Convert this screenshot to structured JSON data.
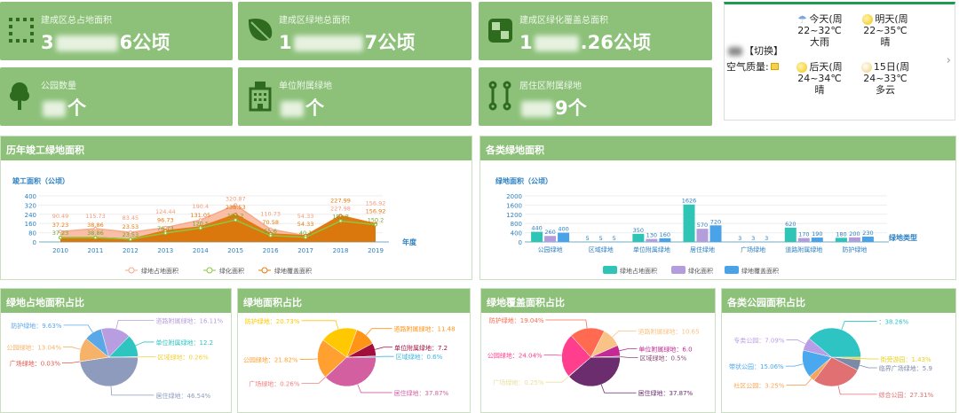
{
  "stats": [
    {
      "label": "建成区总占地面积",
      "prefix": "3",
      "suffix": "6公顷",
      "icon": "dotted-square-icon"
    },
    {
      "label": "建成区绿地总面积",
      "prefix": "1",
      "suffix": "7公顷",
      "icon": "leaf-icon"
    },
    {
      "label": "建成区绿化覆盖总面积",
      "prefix": "1",
      "suffix": ".26公顷",
      "icon": "quadrant-square-icon"
    },
    {
      "label": "公园数量",
      "prefix": "",
      "suffix": "个",
      "icon": "tree-icon"
    },
    {
      "label": "单位附属绿地",
      "prefix": "",
      "suffix": "个",
      "icon": "building-icon"
    },
    {
      "label": "居住区附属绿地",
      "prefix": "",
      "suffix": "9个",
      "icon": "link-nodes-icon"
    }
  ],
  "weather": {
    "switch": "【切换】",
    "air_quality": "空气质量:",
    "days": [
      {
        "day": "今天(周",
        "temp": "22~32℃",
        "desc": "大雨",
        "icon": "rain-icon"
      },
      {
        "day": "明天(周",
        "temp": "22~35℃",
        "desc": "晴",
        "icon": "sun-icon"
      },
      {
        "day": "后天(周",
        "temp": "24~34℃",
        "desc": "晴",
        "icon": "sun-icon"
      },
      {
        "day": "15日(周",
        "temp": "24~33℃",
        "desc": "多云",
        "icon": "cloudy-icon"
      }
    ],
    "next": "›"
  },
  "colors": {
    "card": "#8dc17a",
    "accent": "#1e9b4e"
  },
  "chart_data": [
    {
      "title": "历年竣工绿地面积",
      "type": "area",
      "ylabel": "竣工面积（公顷）",
      "xlabel": "年度",
      "ylim": [
        0,
        400
      ],
      "yticks": [
        "0",
        "80",
        "160",
        "240",
        "320",
        "400"
      ],
      "categories": [
        "2010",
        "2011",
        "2012",
        "2013",
        "2014",
        "2015",
        "2016",
        "2017",
        "2018",
        "2019"
      ],
      "legend_position": "bottom",
      "series": [
        {
          "name": "绿地占地面积",
          "color": "#f7a98a",
          "values": [
            90.49,
            115.73,
            83.45,
            124.44,
            190.4,
            320.87,
            110.73,
            54.33,
            227.98,
            156.92
          ]
        },
        {
          "name": "绿化面积",
          "color": "#8cc63f",
          "values": [
            37.23,
            38.86,
            23.53,
            76.73,
            120.5,
            190.2,
            55.6,
            40.1,
            181.8,
            150.2
          ]
        },
        {
          "name": "绿地覆盖面积",
          "color": "#e8780c",
          "values": [
            37.23,
            38.86,
            23.53,
            96.73,
            131.05,
            238.53,
            70.58,
            54.33,
            227.99,
            156.92
          ]
        }
      ]
    },
    {
      "title": "各类绿地面积",
      "type": "bar",
      "ylabel": "绿地面积（公顷）",
      "xlabel": "绿地类型",
      "ylim": [
        0,
        2000
      ],
      "yticks": [
        "0",
        "400",
        "800",
        "1200",
        "1600",
        "2000"
      ],
      "categories": [
        "公园绿地",
        "区域绿地",
        "单位附属绿地",
        "居住绿地",
        "广场绿地",
        "道路附属绿地",
        "防护绿地"
      ],
      "legend_position": "bottom",
      "series": [
        {
          "name": "绿地占地面积",
          "color": "#2ec4b6",
          "values": [
            440,
            5,
            350,
            1626,
            3,
            620,
            180
          ]
        },
        {
          "name": "绿化面积",
          "color": "#b39ddb",
          "values": [
            260,
            5,
            130,
            570,
            3,
            170,
            200
          ]
        },
        {
          "name": "绿地覆盖面积",
          "color": "#4aa3e8",
          "values": [
            400,
            5,
            160,
            720,
            3,
            190,
            230
          ]
        }
      ]
    },
    {
      "title": "绿地占地面积占比",
      "type": "pie",
      "slices": [
        {
          "name": "居住绿地",
          "value": 46.54,
          "label": "居住绿地：46.54%",
          "color": "#8e9bbd"
        },
        {
          "name": "广场绿地",
          "value": 0.03,
          "label": "广场绿地：0.03%",
          "color": "#e8554e"
        },
        {
          "name": "公园绿地",
          "value": 13.04,
          "label": "公园绿地：13.04%",
          "color": "#f7b26a"
        },
        {
          "name": "防护绿地",
          "value": 9.63,
          "label": "防护绿地：9.63%",
          "color": "#5aa8e8"
        },
        {
          "name": "道路附属绿地",
          "value": 16.11,
          "label": "道路附属绿地：16.11%",
          "color": "#b89ee0"
        },
        {
          "name": "单位附属绿地",
          "value": 12.2,
          "label": "单位附属绿地：12.2",
          "color": "#2ec4c0"
        },
        {
          "name": "区域绿地",
          "value": 0.26,
          "label": "区域绿地：0.26%",
          "color": "#f2d13c"
        }
      ]
    },
    {
      "title": "绿地面积占比",
      "type": "pie",
      "slices": [
        {
          "name": "居住绿地",
          "value": 37.87,
          "label": "居住绿地：37.87%",
          "color": "#d35fa0"
        },
        {
          "name": "广场绿地",
          "value": 0.26,
          "label": "广场绿地：0.26%",
          "color": "#f08080"
        },
        {
          "name": "公园绿地",
          "value": 21.82,
          "label": "公园绿地：21.82%",
          "color": "#ffa030"
        },
        {
          "name": "防护绿地",
          "value": 20.73,
          "label": "防护绿地：20.73%",
          "color": "#ffc800"
        },
        {
          "name": "道路附属绿地",
          "value": 11.48,
          "label": "道路附属绿地：11.48",
          "color": "#ff9416"
        },
        {
          "name": "单位附属绿地",
          "value": 7.2,
          "label": "单位附属绿地：7.2",
          "color": "#a30f3c"
        },
        {
          "name": "区域绿地",
          "value": 0.6,
          "label": "区域绿地：0.6%",
          "color": "#3fb6e0"
        }
      ]
    },
    {
      "title": "绿地覆盖面积占比",
      "type": "pie",
      "slices": [
        {
          "name": "居住绿地",
          "value": 37.87,
          "label": "居住绿地：37.87%",
          "color": "#6b2d6e"
        },
        {
          "name": "广场绿地",
          "value": 0.25,
          "label": "广场绿地：0.25%",
          "color": "#e8e0a0"
        },
        {
          "name": "公园绿地",
          "value": 24.04,
          "label": "公园绿地：24.04%",
          "color": "#ff3f8e"
        },
        {
          "name": "防护绿地",
          "value": 19.04,
          "label": "防护绿地：19.04%",
          "color": "#ff6a50"
        },
        {
          "name": "道路附属绿地",
          "value": 10.65,
          "label": "道路附属绿地：10.65",
          "color": "#f8c385"
        },
        {
          "name": "单位附属绿地",
          "value": 6.0,
          "label": "单位附属绿地：6.0",
          "color": "#c42a94"
        },
        {
          "name": "区域绿地",
          "value": 0.5,
          "label": "区域绿地：0.5%",
          "color": "#8b4a7a"
        }
      ]
    },
    {
      "title": "各类公园面积占比",
      "type": "pie",
      "slices": [
        {
          "name": "街旁游园",
          "value": 1.43,
          "label": "街旁游园：1.43%",
          "color": "#e8d020"
        },
        {
          "name": "临界广场绿地",
          "value": 5.9,
          "label": "临界广场绿地：5.9",
          "color": "#7c8aa8"
        },
        {
          "name": "综合公园",
          "value": 27.31,
          "label": "综合公园：27.31%",
          "color": "#e07072"
        },
        {
          "name": "社区公园",
          "value": 3.25,
          "label": "社区公园：3.25%",
          "color": "#f7a55a"
        },
        {
          "name": "带状公园",
          "value": 15.06,
          "label": "带状公园：15.06%",
          "color": "#4aa8ee"
        },
        {
          "name": "专类公园",
          "value": 7.09,
          "label": "专类公园：7.09%",
          "color": "#b89ee8"
        },
        {
          "name": "",
          "value": 38.26,
          "label": "：38.26%",
          "color": "#2ec4c4"
        }
      ]
    }
  ]
}
